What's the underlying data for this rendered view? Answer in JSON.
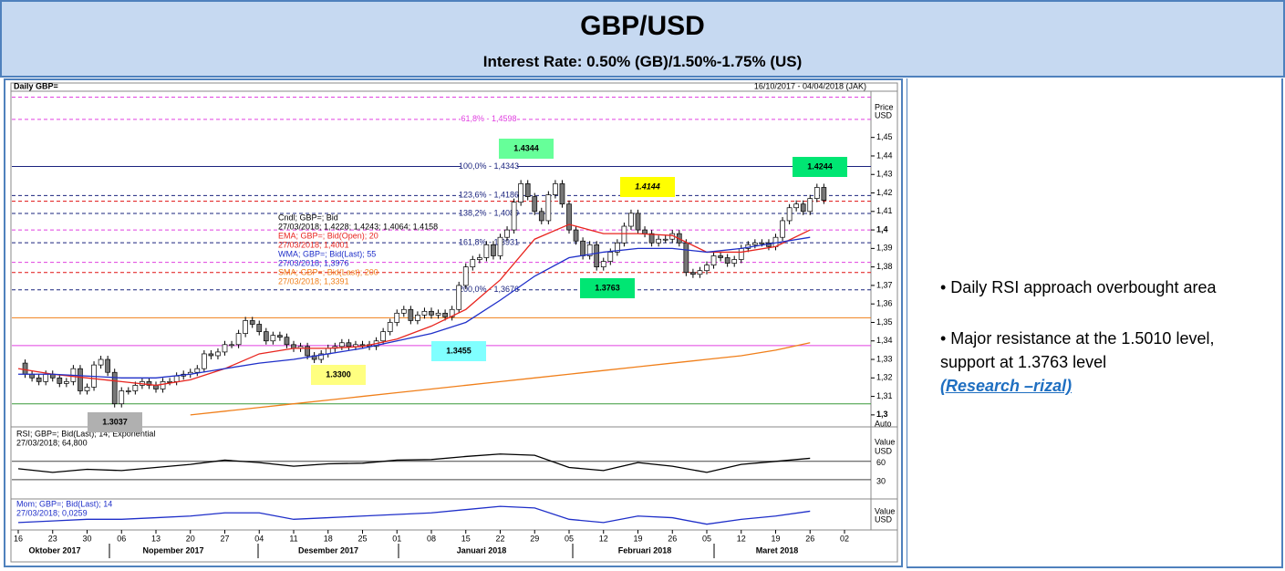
{
  "header": {
    "title": "GBP/USD",
    "subtitle": "Interest Rate:  0.50% (GB)/1.50%-1.75% (US)"
  },
  "sidebar": {
    "points": [
      "• Daily RSI approach overbought area",
      "• Major resistance at the 1.5010 level, support at 1.3763 level"
    ],
    "credit": "(Research –rizal)"
  },
  "chart_data": {
    "type": "candlestick",
    "title": "Daily GBP=",
    "range_label": "16/10/2017 - 04/04/2018 (JAK)",
    "axis_label": [
      "Price",
      "USD"
    ],
    "auto": "Auto",
    "ylim": [
      1.295,
      1.475
    ],
    "yticks": [
      {
        "value": 1.3,
        "label": "1,3"
      },
      {
        "value": 1.31,
        "label": "1,31"
      },
      {
        "value": 1.32,
        "label": "1,32"
      },
      {
        "value": 1.33,
        "label": "1,33"
      },
      {
        "value": 1.34,
        "label": "1,34"
      },
      {
        "value": 1.35,
        "label": "1,35"
      },
      {
        "value": 1.36,
        "label": "1,36"
      },
      {
        "value": 1.37,
        "label": "1,37"
      },
      {
        "value": 1.38,
        "label": "1,38"
      },
      {
        "value": 1.39,
        "label": "1,39"
      },
      {
        "value": 1.4,
        "label": "1,4"
      },
      {
        "value": 1.41,
        "label": "1,41"
      },
      {
        "value": 1.42,
        "label": "1,42"
      },
      {
        "value": 1.43,
        "label": "1,43"
      },
      {
        "value": 1.44,
        "label": "1,44"
      },
      {
        "value": 1.45,
        "label": "1,45"
      }
    ],
    "week_labels": [
      "16",
      "23",
      "30",
      "06",
      "13",
      "20",
      "27",
      "04",
      "11",
      "18",
      "25",
      "01",
      "08",
      "15",
      "22",
      "29",
      "05",
      "12",
      "19",
      "26",
      "05",
      "12",
      "19",
      "26",
      "02"
    ],
    "month_labels": [
      "Oktober 2017",
      "Nopember 2017",
      "Desember 2017",
      "Januari 2018",
      "Februari 2018",
      "Maret 2018"
    ],
    "close": [
      1.328,
      1.322,
      1.32,
      1.318,
      1.322,
      1.32,
      1.317,
      1.318,
      1.325,
      1.313,
      1.315,
      1.327,
      1.33,
      1.323,
      1.306,
      1.313,
      1.313,
      1.316,
      1.318,
      1.316,
      1.314,
      1.318,
      1.318,
      1.321,
      1.322,
      1.323,
      1.325,
      1.333,
      1.332,
      1.334,
      1.338,
      1.338,
      1.344,
      1.351,
      1.349,
      1.345,
      1.34,
      1.343,
      1.342,
      1.338,
      1.336,
      1.337,
      1.332,
      1.33,
      1.333,
      1.336,
      1.337,
      1.339,
      1.337,
      1.338,
      1.338,
      1.337,
      1.34,
      1.345,
      1.35,
      1.355,
      1.357,
      1.351,
      1.354,
      1.356,
      1.354,
      1.355,
      1.353,
      1.357,
      1.37,
      1.38,
      1.384,
      1.385,
      1.392,
      1.386,
      1.396,
      1.4,
      1.415,
      1.425,
      1.418,
      1.41,
      1.405,
      1.419,
      1.425,
      1.414,
      1.4,
      1.394,
      1.386,
      1.392,
      1.38,
      1.383,
      1.388,
      1.393,
      1.402,
      1.409,
      1.4,
      1.398,
      1.393,
      1.395,
      1.395,
      1.398,
      1.393,
      1.377,
      1.376,
      1.378,
      1.381,
      1.386,
      1.385,
      1.382,
      1.384,
      1.39,
      1.392,
      1.393,
      1.393,
      1.391,
      1.396,
      1.405,
      1.412,
      1.414,
      1.41,
      1.417,
      1.423,
      1.416
    ],
    "series": [
      {
        "name": "EMA",
        "color": "#e8251f",
        "values": [
          1.325,
          1.322,
          1.32,
          1.318,
          1.316,
          1.319,
          1.325,
          1.333,
          1.336,
          1.336,
          1.337,
          1.341,
          1.348,
          1.357,
          1.373,
          1.395,
          1.403,
          1.398,
          1.398,
          1.397,
          1.388,
          1.388,
          1.391,
          1.4
        ]
      },
      {
        "name": "WMA",
        "color": "#1f2fc9",
        "values": [
          1.322,
          1.322,
          1.321,
          1.32,
          1.32,
          1.322,
          1.325,
          1.328,
          1.33,
          1.333,
          1.336,
          1.34,
          1.344,
          1.35,
          1.362,
          1.375,
          1.385,
          1.388,
          1.39,
          1.39,
          1.388,
          1.39,
          1.393,
          1.396
        ]
      },
      {
        "name": "SMA",
        "color": "#f07f1a",
        "values": [
          null,
          null,
          null,
          null,
          null,
          1.3,
          1.302,
          1.304,
          1.306,
          1.308,
          1.31,
          1.312,
          1.314,
          1.316,
          1.318,
          1.32,
          1.322,
          1.324,
          1.326,
          1.328,
          1.33,
          1.332,
          1.335,
          1.339
        ]
      }
    ],
    "levels": [
      {
        "value": 1.4718,
        "color": "#e040e0",
        "dash": true
      },
      {
        "value": 1.4598,
        "color": "#e040e0",
        "dash": true,
        "label": "61,8% - 1,4598"
      },
      {
        "value": 1.4343,
        "color": "#1a237e",
        "dash": false,
        "label": "100,0% - 1,4343"
      },
      {
        "value": 1.4186,
        "color": "#1a237e",
        "dash": true,
        "label": "123,6% - 1,4186"
      },
      {
        "value": 1.4155,
        "color": "#e01010",
        "dash": true
      },
      {
        "value": 1.4089,
        "color": "#1a237e",
        "dash": true,
        "label": "138,2% - 1,4089"
      },
      {
        "value": 1.4,
        "color": "#e040e0",
        "dash": true
      },
      {
        "value": 1.3931,
        "color": "#1a237e",
        "dash": true,
        "label": "161,8% - 1,3931"
      },
      {
        "value": 1.3825,
        "color": "#e040e0",
        "dash": true
      },
      {
        "value": 1.377,
        "color": "#e01010",
        "dash": true
      },
      {
        "value": 1.3676,
        "color": "#1a237e",
        "dash": true,
        "label": "200,0% - 1,3676"
      },
      {
        "value": 1.3525,
        "color": "#f07f1a",
        "dash": false
      },
      {
        "value": 1.3375,
        "color": "#e040e0",
        "dash": false
      },
      {
        "value": 1.306,
        "color": "#3a9a3a",
        "dash": false
      }
    ],
    "annotations": [
      {
        "text": "1.4344",
        "value": 1.4344,
        "color": "#66ff99",
        "italic": false
      },
      {
        "text": "1.4244",
        "value": 1.4244,
        "color": "#00e673",
        "italic": false
      },
      {
        "text": "1.4144",
        "value": 1.4144,
        "color": "#ffff00",
        "italic": true
      },
      {
        "text": "1.3763",
        "value": 1.3763,
        "color": "#00e673",
        "italic": false
      },
      {
        "text": "1.3455",
        "value": 1.3455,
        "color": "#80ffff",
        "italic": false
      },
      {
        "text": "1.3300",
        "value": 1.33,
        "color": "#ffff80",
        "italic": false
      },
      {
        "text": "1.3037",
        "value": 1.3037,
        "color": "#b0b0b0",
        "italic": false
      }
    ],
    "info": [
      [
        "Cndl; GBP=; Bid",
        "#000"
      ],
      [
        "27/03/2018; 1,4228; 1,4243; 1,4064; 1,4158",
        "#000"
      ],
      [
        "EMA; GBP=; Bid(Open);  20",
        "#e8251f"
      ],
      [
        "27/03/2018; 1,4001",
        "#e8251f"
      ],
      [
        "WMA; GBP=; Bid(Last);  55",
        "#1f2fc9"
      ],
      [
        "27/03/2018; 1,3976",
        "#1f2fc9"
      ],
      [
        "SMA; GBP=; Bid(Last);  200",
        "#f07f1a"
      ],
      [
        "27/03/2018; 1,3391",
        "#f07f1a"
      ]
    ],
    "rsi": {
      "title": "RSI; GBP=; Bid(Last); 14; Exponential",
      "last": "27/03/2018; 64,800",
      "axis_label": [
        "Value",
        "USD"
      ],
      "ylim": [
        0,
        100
      ],
      "yticks": [
        60,
        30
      ],
      "values": [
        48,
        42,
        47,
        45,
        50,
        55,
        62,
        58,
        52,
        56,
        57,
        62,
        63,
        68,
        72,
        70,
        50,
        45,
        58,
        52,
        42,
        55,
        60,
        65
      ]
    },
    "mom": {
      "title": "Mom; GBP=; Bid(Last); 14",
      "last": "27/03/2018; 0,0259",
      "axis_label": [
        "Value",
        "USD"
      ],
      "ylim": [
        -0.03,
        0.06
      ],
      "values": [
        -0.01,
        -0.005,
        0.0,
        0.0,
        0.005,
        0.01,
        0.02,
        0.02,
        0.0,
        0.005,
        0.01,
        0.015,
        0.02,
        0.03,
        0.04,
        0.035,
        0.0,
        -0.01,
        0.01,
        0.005,
        -0.015,
        0.0,
        0.01,
        0.025
      ]
    }
  }
}
